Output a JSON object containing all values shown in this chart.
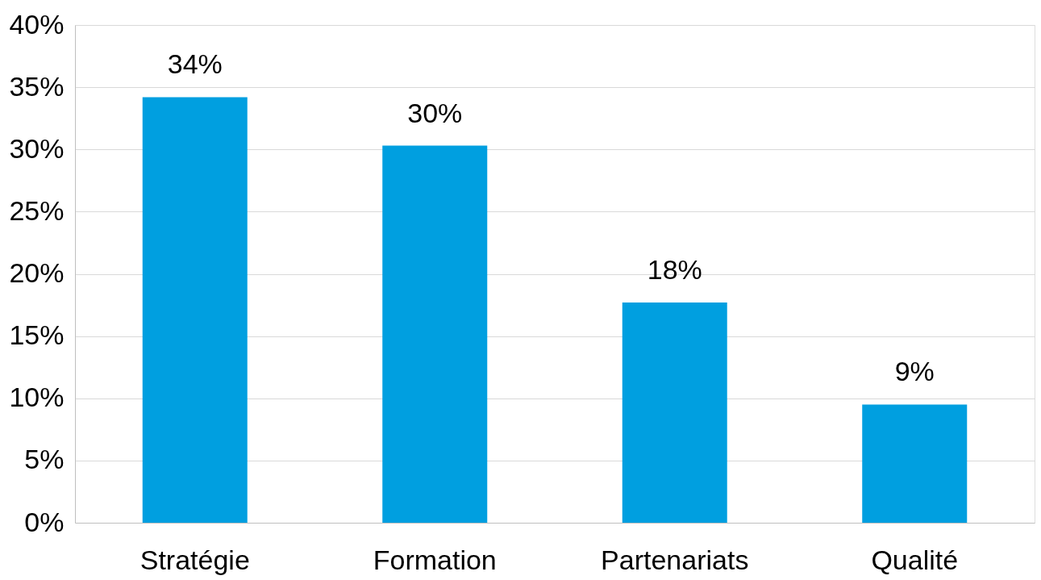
{
  "chart_data": {
    "type": "bar",
    "categories": [
      "Stratégie",
      "Formation",
      "Partenariats",
      "Qualité"
    ],
    "values": [
      34.2,
      30.3,
      17.7,
      9.5
    ],
    "value_labels": [
      "34%",
      "30%",
      "18%",
      "9%"
    ],
    "color": "#009fe0",
    "ylim": [
      0,
      40
    ],
    "yticks": [
      {
        "value": 0,
        "label": "0%"
      },
      {
        "value": 5,
        "label": "5%"
      },
      {
        "value": 10,
        "label": "10%"
      },
      {
        "value": 15,
        "label": "15%"
      },
      {
        "value": 20,
        "label": "20%"
      },
      {
        "value": 25,
        "label": "25%"
      },
      {
        "value": 30,
        "label": "30%"
      },
      {
        "value": 35,
        "label": "35%"
      },
      {
        "value": 40,
        "label": "40%"
      }
    ],
    "grid": "y"
  }
}
